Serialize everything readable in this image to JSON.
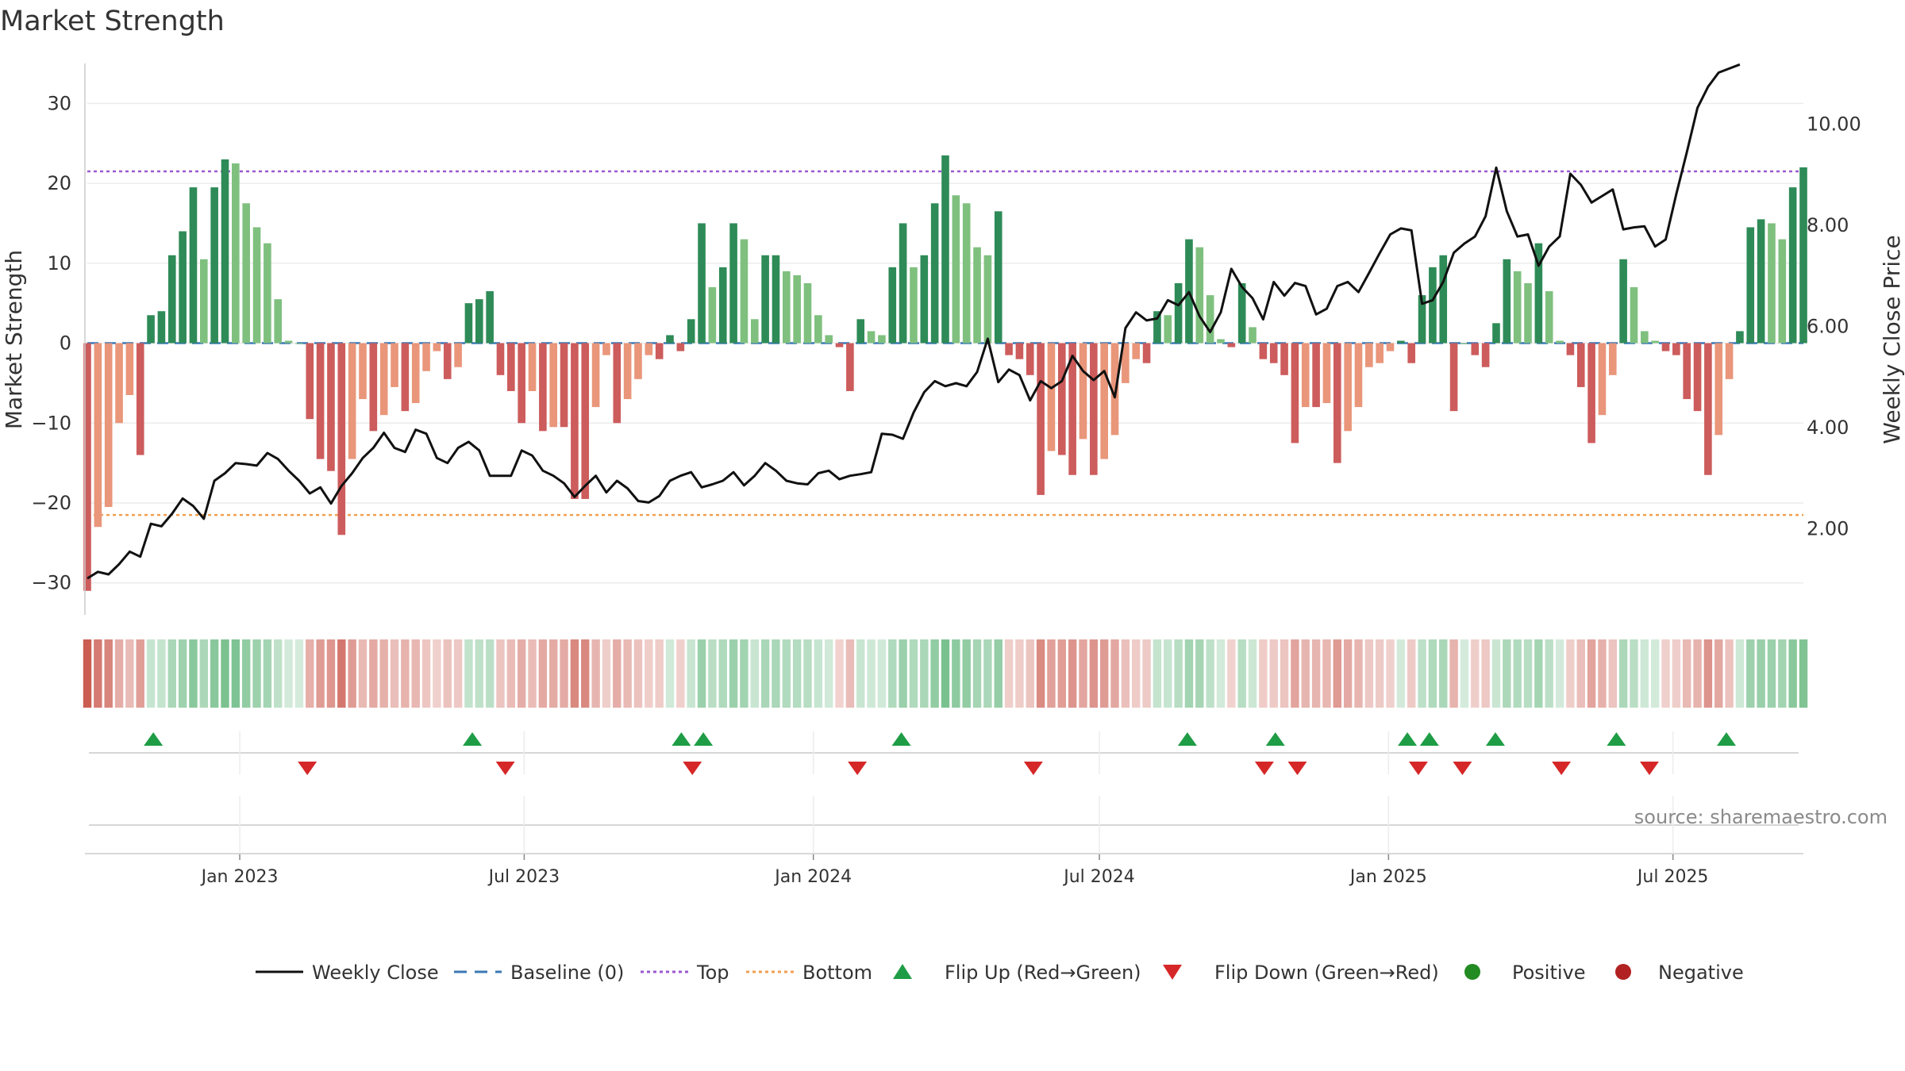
{
  "chart_data": {
    "type": "bar",
    "title": "Market Strength",
    "ylabel": "Market Strength",
    "y2label": "Weekly Close Price",
    "ylim": [
      -34,
      35
    ],
    "y2lim": [
      0.3,
      11.2
    ],
    "yticks": [
      30,
      20,
      10,
      0,
      -10,
      -20,
      -30
    ],
    "ytick_labels": [
      "30",
      "20",
      "10",
      "0",
      "−10",
      "−20",
      "−30"
    ],
    "y2ticks": [
      10,
      8,
      6,
      4,
      2
    ],
    "y2tick_labels": [
      "10.00",
      "8.00",
      "6.00",
      "4.00",
      "2.00"
    ],
    "x_axis": {
      "start": "2022-09-26",
      "end": "2025-09-22",
      "ticks": [
        {
          "date": "2023-01-01",
          "label": "Jan 2023"
        },
        {
          "date": "2023-07-01",
          "label": "Jul 2023"
        },
        {
          "date": "2024-01-01",
          "label": "Jan 2024"
        },
        {
          "date": "2024-07-01",
          "label": "Jul 2024"
        },
        {
          "date": "2025-01-01",
          "label": "Jan 2025"
        },
        {
          "date": "2025-07-01",
          "label": "Jul 2025"
        }
      ]
    },
    "top_line": 21.5,
    "bottom_line": -21.5,
    "strength": [
      -31,
      -23,
      -20.5,
      -10,
      -6.5,
      -14,
      3.5,
      4,
      11,
      14,
      19.5,
      10.5,
      19.5,
      23,
      22.5,
      17.5,
      14.5,
      12.5,
      5.5,
      0.3,
      0,
      -9.5,
      -14.5,
      -16,
      -24,
      -14.5,
      -7,
      -11,
      -9,
      -5.5,
      -8.5,
      -7.5,
      -3.5,
      -1,
      -4.5,
      -3,
      5,
      5.5,
      6.5,
      -4,
      -6,
      -10,
      -6,
      -11,
      -10.5,
      -10.5,
      -19.5,
      -19.5,
      -8,
      -1.5,
      -10,
      -7,
      -4.5,
      -1.5,
      -2,
      1,
      -1,
      3,
      15,
      7,
      9.5,
      15,
      13,
      3,
      11,
      11,
      9,
      8.5,
      7.5,
      3.5,
      1,
      -0.5,
      -6,
      3,
      1.5,
      1,
      9.5,
      15,
      9.5,
      11,
      17.5,
      23.5,
      18.5,
      17.5,
      12,
      11,
      16.5,
      -1.5,
      -2,
      -4,
      -19,
      -13.5,
      -14,
      -16.5,
      -12,
      -16.5,
      -14.5,
      -11.5,
      -5,
      -2,
      -2.5,
      4,
      3.5,
      7.5,
      13,
      12,
      6,
      0.5,
      -0.5,
      7.5,
      2,
      -2,
      -2.5,
      -4,
      -12.5,
      -8,
      -8,
      -7.5,
      -15,
      -11,
      -8,
      -3,
      -2.5,
      -1,
      0.3,
      -2.5,
      6,
      9.5,
      11,
      -8.5,
      0,
      -1.5,
      -3,
      2.5,
      10.5,
      9,
      7.5,
      12.5,
      6.5,
      0.3,
      -1.5,
      -5.5,
      -12.5,
      -9,
      -4,
      10.5,
      7,
      1.5,
      0.3,
      -1,
      -1.5,
      -7,
      -8.5,
      -16.5,
      -11.5,
      -4.5,
      1.5,
      14.5,
      15.5,
      15,
      13,
      19.5,
      22
    ],
    "weekly_close": [
      1.02,
      1.15,
      1.1,
      1.3,
      1.55,
      1.45,
      2.1,
      2.05,
      2.3,
      2.6,
      2.45,
      2.2,
      2.95,
      3.1,
      3.3,
      3.28,
      3.25,
      3.5,
      3.38,
      3.15,
      2.95,
      2.7,
      2.82,
      2.5,
      2.85,
      3.1,
      3.4,
      3.6,
      3.9,
      3.6,
      3.52,
      3.96,
      3.88,
      3.4,
      3.3,
      3.6,
      3.72,
      3.55,
      3.05,
      3.05,
      3.05,
      3.55,
      3.45,
      3.15,
      3.05,
      2.9,
      2.63,
      2.85,
      3.05,
      2.72,
      2.95,
      2.8,
      2.55,
      2.52,
      2.65,
      2.95,
      3.05,
      3.12,
      2.82,
      2.88,
      2.95,
      3.12,
      2.86,
      3.05,
      3.3,
      3.15,
      2.95,
      2.9,
      2.88,
      3.1,
      3.15,
      2.98,
      3.05,
      3.08,
      3.12,
      3.88,
      3.86,
      3.78,
      4.3,
      4.7,
      4.92,
      4.82,
      4.88,
      4.82,
      5.1,
      5.76,
      4.9,
      5.15,
      5.04,
      4.54,
      4.92,
      4.78,
      4.92,
      5.42,
      5.12,
      4.94,
      5.12,
      4.6,
      5.97,
      6.28,
      6.12,
      6.16,
      6.52,
      6.42,
      6.68,
      6.2,
      5.89,
      6.28,
      7.14,
      6.78,
      6.56,
      6.14,
      6.88,
      6.61,
      6.86,
      6.8,
      6.24,
      6.35,
      6.8,
      6.88,
      6.68,
      7.06,
      7.45,
      7.82,
      7.94,
      7.9,
      6.45,
      6.52,
      6.88,
      7.46,
      7.64,
      7.78,
      8.18,
      9.14,
      8.28,
      7.78,
      7.82,
      7.2,
      7.58,
      7.78,
      9.02,
      8.8,
      8.45,
      8.58,
      8.71,
      7.92,
      7.96,
      7.98,
      7.58,
      7.72,
      8.62,
      9.45,
      10.32,
      10.74,
      11.02,
      11.1,
      11.18
    ],
    "flip_up_dates": [
      "2022-11-07",
      "2023-05-29",
      "2023-10-09",
      "2023-10-23",
      "2024-02-26",
      "2024-08-26",
      "2024-10-21",
      "2025-01-13",
      "2025-01-27",
      "2025-03-10",
      "2025-05-26",
      "2025-08-04"
    ],
    "flip_down_dates": [
      "2023-02-13",
      "2023-06-19",
      "2023-10-16",
      "2024-01-29",
      "2024-05-20",
      "2024-10-14",
      "2024-11-04",
      "2025-01-20",
      "2025-02-17",
      "2025-04-21",
      "2025-06-16"
    ],
    "legend": [
      {
        "key": "close",
        "label": "Weekly Close"
      },
      {
        "key": "baseline",
        "label": "Baseline (0)"
      },
      {
        "key": "top",
        "label": "Top"
      },
      {
        "key": "bottom",
        "label": "Bottom"
      },
      {
        "key": "flipup",
        "label": "Flip Up (Red→Green)"
      },
      {
        "key": "flipdown",
        "label": "Flip Down (Green→Red)"
      },
      {
        "key": "positive",
        "label": "Positive"
      },
      {
        "key": "negative",
        "label": "Negative"
      }
    ],
    "source": "source: sharemaestro.com",
    "colors": {
      "positive_strong": "#2e8b57",
      "positive_weak": "#7fc07f",
      "negative_strong": "#cd5c5c",
      "negative_weak": "#e9967a",
      "close_line": "#111111",
      "baseline": "#3a78b5",
      "top": "#9b59d0",
      "bottom": "#f0a050",
      "flip_up": "#1f9d46",
      "flip_down": "#d62728",
      "positive_dot": "#228b22",
      "negative_dot": "#b22222",
      "grid": "#ececec"
    }
  }
}
